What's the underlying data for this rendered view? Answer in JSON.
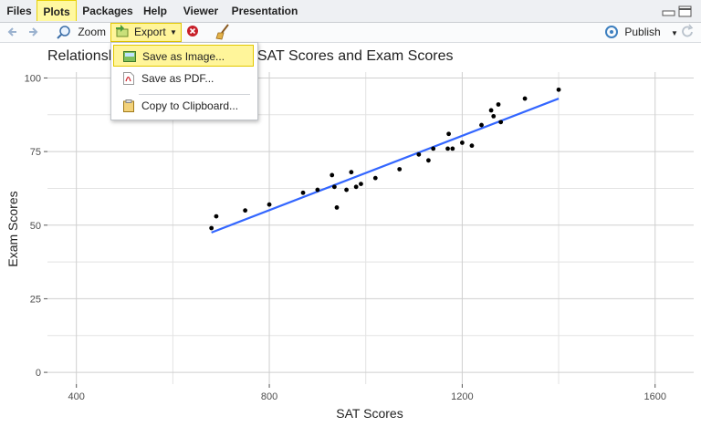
{
  "tabs": [
    "Files",
    "Plots",
    "Packages",
    "Help",
    "Viewer",
    "Presentation"
  ],
  "active_tab": "Plots",
  "toolbar": {
    "zoom_label": "Zoom",
    "export_label": "Export",
    "publish_label": "Publish"
  },
  "export_menu": {
    "items": [
      "Save as Image...",
      "Save as PDF...",
      "Copy to Clipboard..."
    ],
    "highlighted": "Save as Image..."
  },
  "colors": {
    "active_tab": "#fff8a0",
    "highlight": "#fff59a",
    "regression_line": "#3366ff",
    "points": "#000000"
  },
  "chart_data": {
    "type": "scatter",
    "title": "Relationship Between Students' SAT Scores and Exam Scores",
    "xlabel": "SAT Scores",
    "ylabel": "Exam Scores",
    "xlim": [
      340,
      1680
    ],
    "ylim": [
      -4,
      102
    ],
    "xticks": [
      400,
      800,
      1200,
      1600
    ],
    "yticks": [
      0,
      25,
      50,
      75,
      100
    ],
    "grid": true,
    "legend": "none",
    "points": [
      [
        680,
        49
      ],
      [
        690,
        53
      ],
      [
        750,
        55
      ],
      [
        800,
        57
      ],
      [
        870,
        61
      ],
      [
        900,
        62
      ],
      [
        930,
        67
      ],
      [
        935,
        63
      ],
      [
        940,
        56
      ],
      [
        960,
        62
      ],
      [
        970,
        68
      ],
      [
        980,
        63
      ],
      [
        990,
        64
      ],
      [
        1020,
        66
      ],
      [
        1070,
        69
      ],
      [
        1110,
        74
      ],
      [
        1130,
        72
      ],
      [
        1140,
        76
      ],
      [
        1170,
        76
      ],
      [
        1172,
        81
      ],
      [
        1180,
        76
      ],
      [
        1200,
        78
      ],
      [
        1220,
        77
      ],
      [
        1240,
        84
      ],
      [
        1260,
        89
      ],
      [
        1265,
        87
      ],
      [
        1275,
        91
      ],
      [
        1280,
        85
      ],
      [
        1330,
        93
      ],
      [
        1400,
        96
      ]
    ],
    "fit_line": {
      "x": [
        680,
        1400
      ],
      "y": [
        47.5,
        93
      ]
    }
  }
}
